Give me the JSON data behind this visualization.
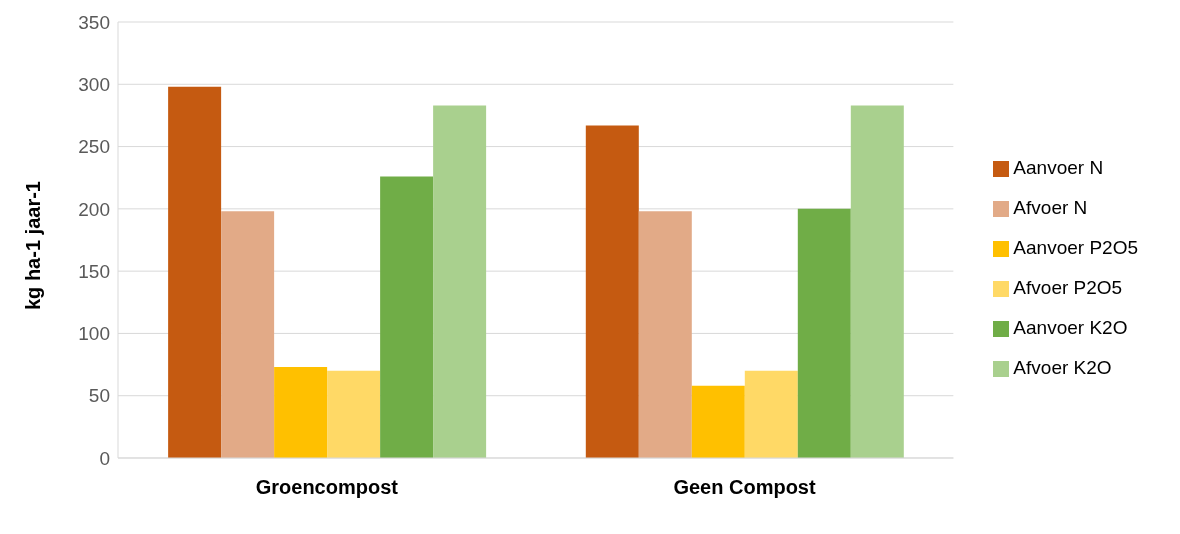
{
  "chart_data": {
    "type": "bar",
    "ylabel": "kg ha-1 jaar-1",
    "categories": [
      "Groencompost",
      "Geen Compost"
    ],
    "series": [
      {
        "name": "Aanvoer N",
        "color": "#c55a11",
        "values": [
          298,
          267
        ]
      },
      {
        "name": "Afvoer N",
        "color": "#e2aa87",
        "values": [
          198,
          198
        ]
      },
      {
        "name": "Aanvoer P2O5",
        "color": "#ffc000",
        "values": [
          73,
          58
        ]
      },
      {
        "name": "Afvoer P2O5",
        "color": "#ffd966",
        "values": [
          70,
          70
        ]
      },
      {
        "name": "Aanvoer K2O",
        "color": "#70ad47",
        "values": [
          226,
          200
        ]
      },
      {
        "name": "Afvoer K2O",
        "color": "#a9d08e",
        "values": [
          283,
          283
        ]
      }
    ],
    "ylim": [
      0,
      350
    ],
    "yticks": [
      0,
      50,
      100,
      150,
      200,
      250,
      300,
      350
    ],
    "grid": "y",
    "legend": "right"
  }
}
